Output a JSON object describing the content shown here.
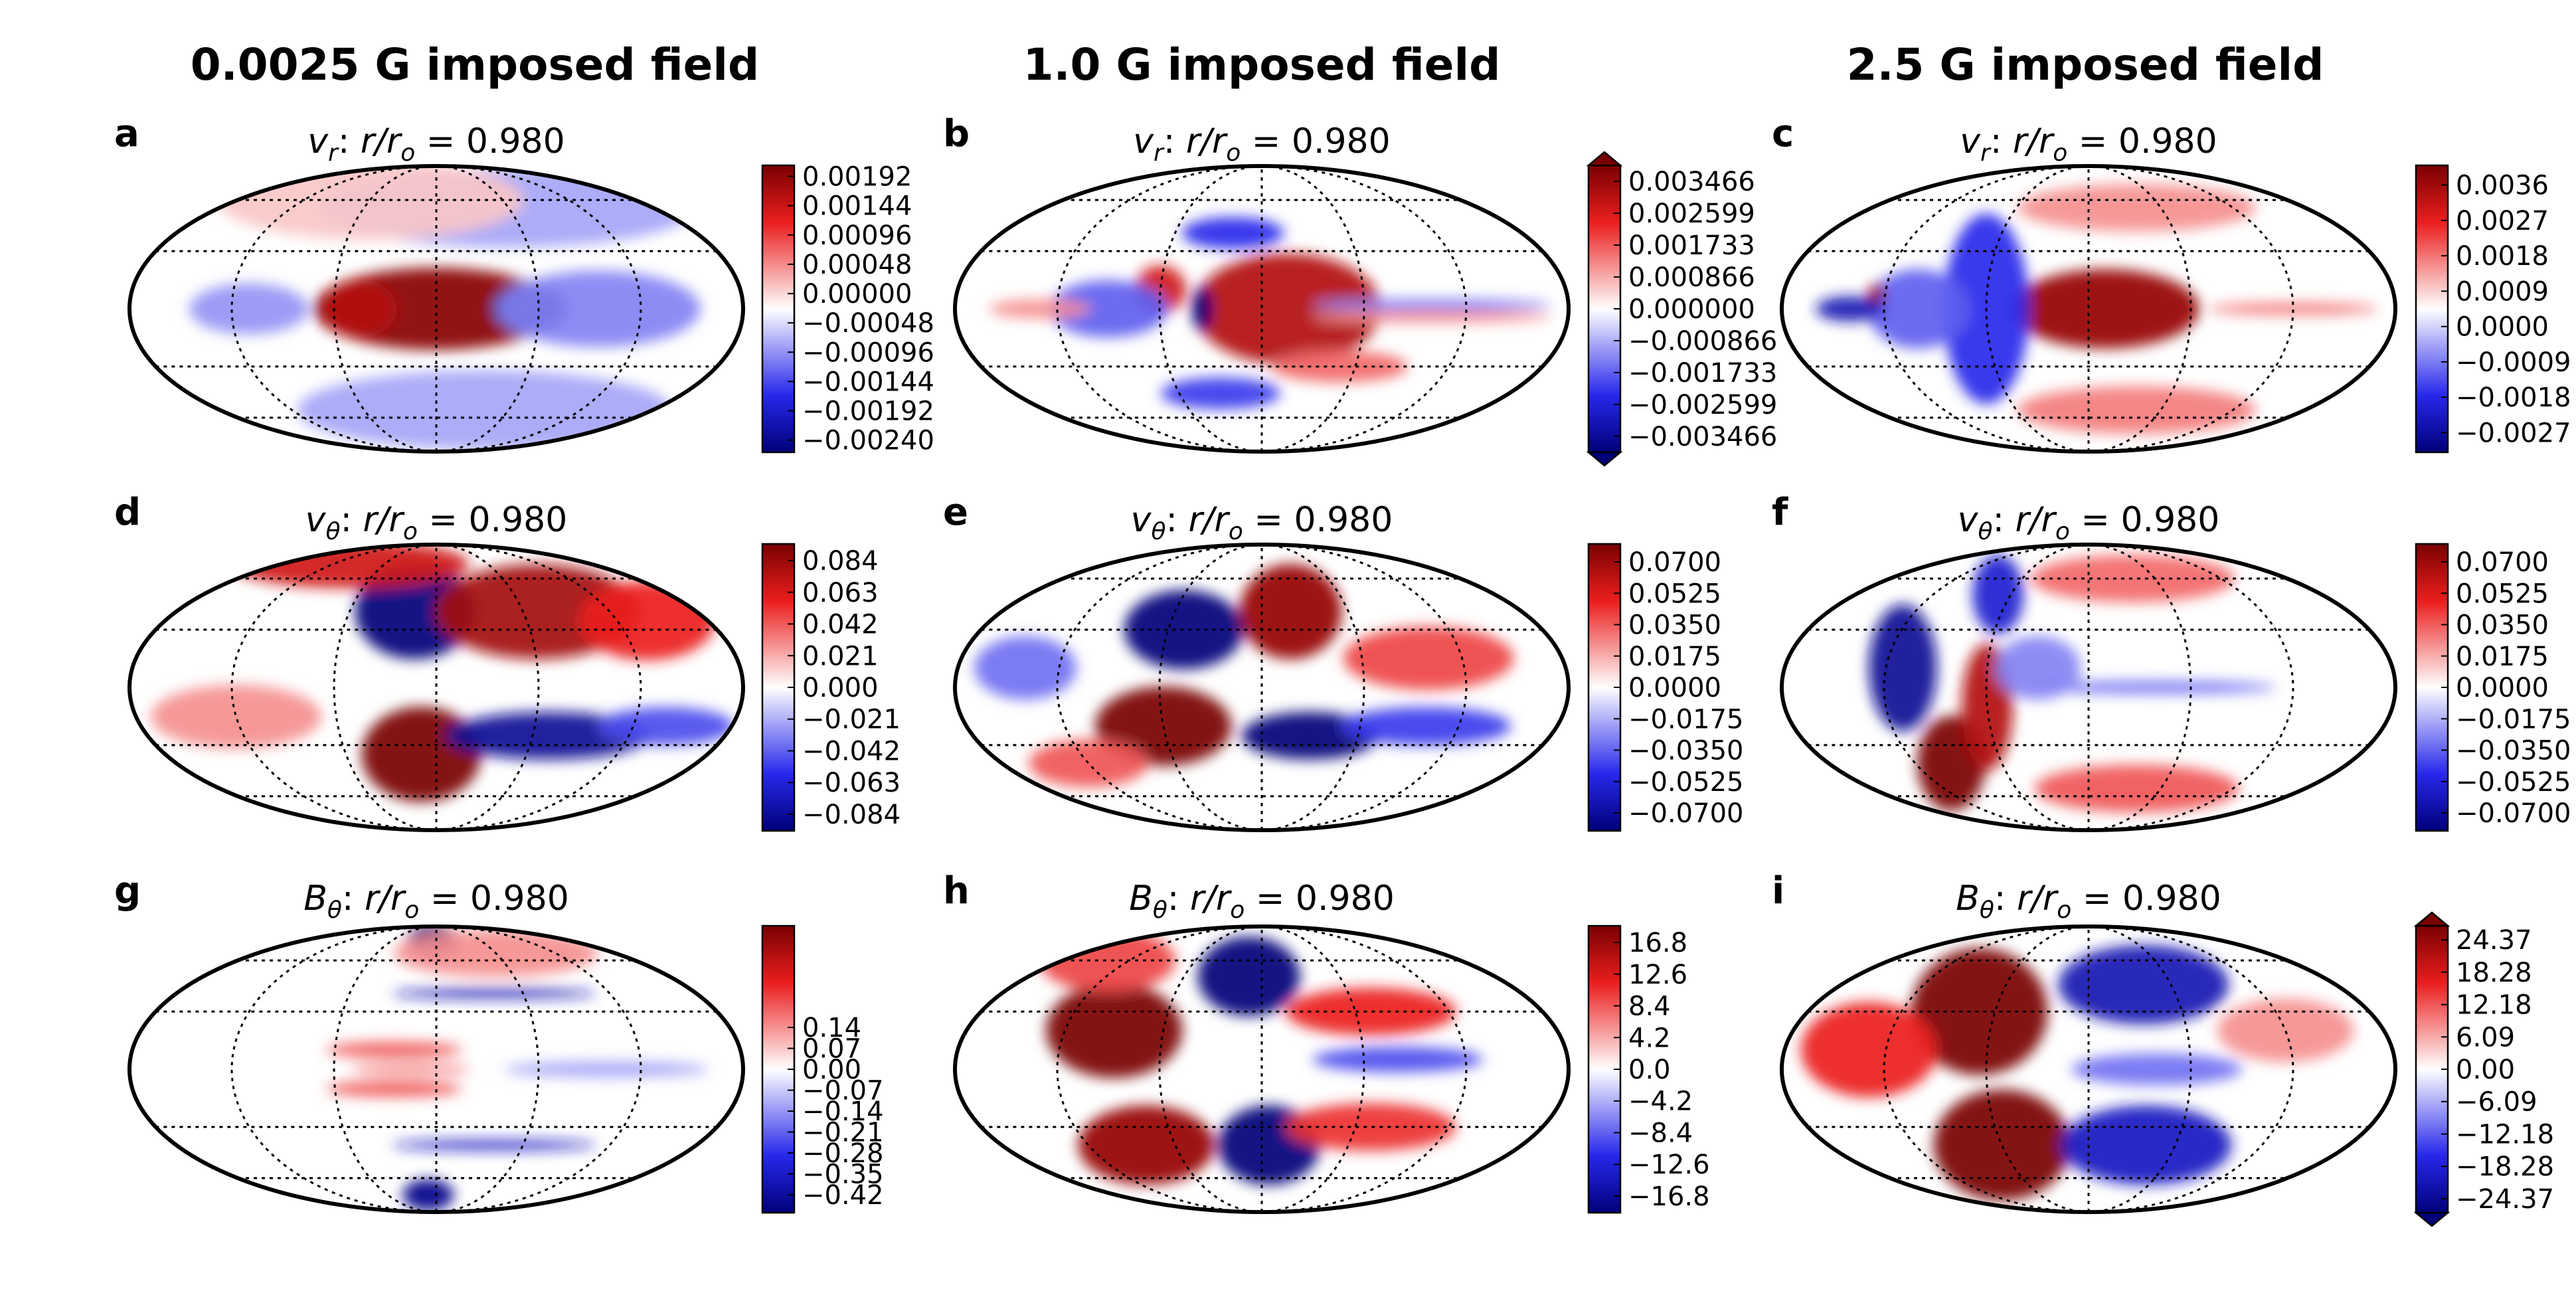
{
  "figure": {
    "column_titles": [
      "0.0025 G imposed field",
      "1.0 G imposed field",
      "2.5 G imposed field"
    ]
  },
  "colors": {
    "low": "#00007a",
    "mid": "#ffffff",
    "high": "#7a0000"
  },
  "chart_data": [
    {
      "id": "a",
      "type": "heatmap",
      "projection": "mollweide",
      "letter": "a",
      "quantity": "v_r",
      "radius_label": "r/r_o = 0.980",
      "colorbar": {
        "ticks": [
          "0.00192",
          "0.00144",
          "0.00096",
          "0.00048",
          "0.00000",
          "−0.00048",
          "−0.00096",
          "−0.00144",
          "−0.00192",
          "−0.00240"
        ],
        "vmin": -0.0026,
        "vmax": 0.0021,
        "extend": "neither"
      },
      "blobs": [
        {
          "lon": 0,
          "lat": 0,
          "w": 72,
          "h": 26,
          "v": 0.95
        },
        {
          "lon": -45,
          "lat": 0,
          "w": 22,
          "h": 18,
          "v": 0.8
        },
        {
          "lon": 55,
          "lat": 0,
          "w": 22,
          "h": 14,
          "v": -1.0
        },
        {
          "lon": 95,
          "lat": 0,
          "w": 60,
          "h": 24,
          "v": -0.35
        },
        {
          "lon": -110,
          "lat": 0,
          "w": 35,
          "h": 16,
          "v": -0.3
        },
        {
          "lon": 60,
          "lat": 55,
          "w": 110,
          "h": 25,
          "v": -0.25
        },
        {
          "lon": 40,
          "lat": -55,
          "w": 110,
          "h": 25,
          "v": -0.25
        },
        {
          "lon": -60,
          "lat": 60,
          "w": 90,
          "h": 25,
          "v": 0.15
        }
      ]
    },
    {
      "id": "b",
      "type": "heatmap",
      "projection": "mollweide",
      "letter": "b",
      "quantity": "v_r",
      "radius_label": "r/r_o = 0.980",
      "colorbar": {
        "ticks": [
          "0.003466",
          "0.002599",
          "0.001733",
          "0.000866",
          "0.000000",
          "−0.000866",
          "−0.001733",
          "−0.002599",
          "−0.003466"
        ],
        "vmin": -0.0039,
        "vmax": 0.0039,
        "extend": "both"
      },
      "blobs": [
        {
          "lon": 15,
          "lat": 0,
          "w": 55,
          "h": 35,
          "v": 0.8
        },
        {
          "lon": -60,
          "lat": 10,
          "w": 15,
          "h": 15,
          "v": 0.7
        },
        {
          "lon": -35,
          "lat": 0,
          "w": 6,
          "h": 14,
          "v": -1.0
        },
        {
          "lon": -90,
          "lat": 0,
          "w": 35,
          "h": 18,
          "v": -0.45
        },
        {
          "lon": 100,
          "lat": 2,
          "w": 70,
          "h": 4,
          "v": -0.35
        },
        {
          "lon": 100,
          "lat": -4,
          "w": 70,
          "h": 4,
          "v": 0.3
        },
        {
          "lon": -20,
          "lat": 40,
          "w": 30,
          "h": 10,
          "v": -0.6
        },
        {
          "lon": -30,
          "lat": -45,
          "w": 35,
          "h": 10,
          "v": -0.55
        },
        {
          "lon": 50,
          "lat": -30,
          "w": 40,
          "h": 10,
          "v": 0.4
        },
        {
          "lon": -130,
          "lat": 0,
          "w": 30,
          "h": 6,
          "v": 0.3
        }
      ]
    },
    {
      "id": "c",
      "type": "heatmap",
      "projection": "mollweide",
      "letter": "c",
      "quantity": "v_r",
      "radius_label": "r/r_o = 0.980",
      "colorbar": {
        "ticks": [
          "0.0036",
          "0.0027",
          "0.0018",
          "0.0009",
          "0.0000",
          "−0.0009",
          "−0.0018",
          "−0.0027"
        ],
        "vmin": -0.0032,
        "vmax": 0.0041,
        "extend": "neither"
      },
      "blobs": [
        {
          "lon": 10,
          "lat": 0,
          "w": 55,
          "h": 25,
          "v": 0.9
        },
        {
          "lon": -60,
          "lat": 0,
          "w": 25,
          "h": 60,
          "v": -0.6
        },
        {
          "lon": -100,
          "lat": 0,
          "w": 30,
          "h": 25,
          "v": -0.45
        },
        {
          "lon": -140,
          "lat": 0,
          "w": 20,
          "h": 8,
          "v": -0.8
        },
        {
          "lon": -125,
          "lat": 8,
          "w": 5,
          "h": 6,
          "v": 0.9
        },
        {
          "lon": 40,
          "lat": -55,
          "w": 70,
          "h": 15,
          "v": 0.35
        },
        {
          "lon": 40,
          "lat": 55,
          "w": 70,
          "h": 15,
          "v": 0.3
        },
        {
          "lon": 120,
          "lat": 0,
          "w": 50,
          "h": 4,
          "v": 0.35
        }
      ]
    },
    {
      "id": "d",
      "type": "heatmap",
      "projection": "mollweide",
      "letter": "d",
      "quantity": "v_theta",
      "radius_label": "r/r_o = 0.980",
      "colorbar": {
        "ticks": [
          "0.084",
          "0.063",
          "0.042",
          "0.021",
          "0.000",
          "−0.021",
          "−0.042",
          "−0.063",
          "−0.084"
        ],
        "vmin": -0.095,
        "vmax": 0.095,
        "extend": "neither"
      },
      "blobs": [
        {
          "lon": -15,
          "lat": 40,
          "w": 35,
          "h": 30,
          "v": -1.0
        },
        {
          "lon": -10,
          "lat": -35,
          "w": 35,
          "h": 30,
          "v": 1.0
        },
        {
          "lon": 70,
          "lat": 40,
          "w": 60,
          "h": 30,
          "v": 0.85
        },
        {
          "lon": 70,
          "lat": -25,
          "w": 60,
          "h": 15,
          "v": -0.9
        },
        {
          "lon": 140,
          "lat": 35,
          "w": 40,
          "h": 25,
          "v": 0.6
        },
        {
          "lon": 140,
          "lat": -20,
          "w": 40,
          "h": 12,
          "v": -0.5
        },
        {
          "lon": -100,
          "lat": 70,
          "w": 70,
          "h": 15,
          "v": 0.7
        },
        {
          "lon": -120,
          "lat": -15,
          "w": 50,
          "h": 20,
          "v": 0.3
        }
      ]
    },
    {
      "id": "e",
      "type": "heatmap",
      "projection": "mollweide",
      "letter": "e",
      "quantity": "v_theta",
      "radius_label": "r/r_o = 0.980",
      "colorbar": {
        "ticks": [
          "0.0700",
          "0.0525",
          "0.0350",
          "0.0175",
          "0.0000",
          "−0.0175",
          "−0.0350",
          "−0.0525",
          "−0.0700"
        ],
        "vmin": -0.08,
        "vmax": 0.08,
        "extend": "neither"
      },
      "blobs": [
        {
          "lon": -50,
          "lat": 30,
          "w": 35,
          "h": 25,
          "v": -1.0
        },
        {
          "lon": -60,
          "lat": -20,
          "w": 40,
          "h": 25,
          "v": 1.0
        },
        {
          "lon": 20,
          "lat": 40,
          "w": 30,
          "h": 30,
          "v": 0.9
        },
        {
          "lon": 30,
          "lat": -25,
          "w": 40,
          "h": 15,
          "v": -1.0
        },
        {
          "lon": 100,
          "lat": 15,
          "w": 50,
          "h": 20,
          "v": 0.5
        },
        {
          "lon": 100,
          "lat": -20,
          "w": 50,
          "h": 12,
          "v": -0.55
        },
        {
          "lon": -140,
          "lat": 10,
          "w": 30,
          "h": 20,
          "v": -0.4
        },
        {
          "lon": -120,
          "lat": -40,
          "w": 35,
          "h": 15,
          "v": 0.45
        }
      ]
    },
    {
      "id": "f",
      "type": "heatmap",
      "projection": "mollweide",
      "letter": "f",
      "quantity": "v_theta",
      "radius_label": "r/r_o = 0.980",
      "colorbar": {
        "ticks": [
          "0.0700",
          "0.0525",
          "0.0350",
          "0.0175",
          "0.0000",
          "−0.0175",
          "−0.0350",
          "−0.0525",
          "−0.0700"
        ],
        "vmin": -0.08,
        "vmax": 0.08,
        "extend": "neither"
      },
      "blobs": [
        {
          "lon": -110,
          "lat": 10,
          "w": 20,
          "h": 40,
          "v": -0.9
        },
        {
          "lon": -95,
          "lat": -40,
          "w": 20,
          "h": 30,
          "v": 1.0
        },
        {
          "lon": -70,
          "lat": 50,
          "w": 15,
          "h": 25,
          "v": -0.7
        },
        {
          "lon": -60,
          "lat": -10,
          "w": 15,
          "h": 40,
          "v": 0.8
        },
        {
          "lon": 40,
          "lat": 60,
          "w": 60,
          "h": 15,
          "v": 0.4
        },
        {
          "lon": 40,
          "lat": -55,
          "w": 60,
          "h": 15,
          "v": 0.45
        },
        {
          "lon": 40,
          "lat": 0,
          "w": 70,
          "h": 4,
          "v": -0.4
        },
        {
          "lon": -30,
          "lat": 10,
          "w": 25,
          "h": 20,
          "v": -0.35
        }
      ]
    },
    {
      "id": "g",
      "type": "heatmap",
      "projection": "mollweide",
      "letter": "g",
      "quantity": "B_theta",
      "radius_label": "r/r_o = 0.980",
      "colorbar": {
        "ticks": [
          "0.14",
          "0.07",
          "0.00",
          "−0.07",
          "−0.14",
          "−0.21",
          "−0.28",
          "−0.35",
          "−0.42"
        ],
        "vmin": -0.48,
        "vmax": 0.48,
        "extend": "neither"
      },
      "blobs": [
        {
          "lon": -25,
          "lat": 10,
          "w": 40,
          "h": 5,
          "v": 0.45
        },
        {
          "lon": -25,
          "lat": -10,
          "w": 40,
          "h": 5,
          "v": 0.45
        },
        {
          "lon": -15,
          "lat": 0,
          "w": 35,
          "h": 4,
          "v": 0.3
        },
        {
          "lon": -5,
          "lat": 75,
          "w": 15,
          "h": 10,
          "v": -1.0
        },
        {
          "lon": -10,
          "lat": -72,
          "w": 15,
          "h": 10,
          "v": -0.95
        },
        {
          "lon": 40,
          "lat": 40,
          "w": 60,
          "h": 3,
          "v": -0.8
        },
        {
          "lon": 40,
          "lat": -40,
          "w": 60,
          "h": 3,
          "v": -0.75
        },
        {
          "lon": 100,
          "lat": 0,
          "w": 60,
          "h": 5,
          "v": -0.25
        },
        {
          "lon": 60,
          "lat": 65,
          "w": 60,
          "h": 15,
          "v": 0.3
        }
      ]
    },
    {
      "id": "h",
      "type": "heatmap",
      "projection": "mollweide",
      "letter": "h",
      "quantity": "B_theta",
      "radius_label": "r/r_o = 0.980",
      "colorbar": {
        "ticks": [
          "16.8",
          "12.6",
          "8.4",
          "4.2",
          "0.0",
          "−4.2",
          "−8.4",
          "−12.6",
          "−16.8"
        ],
        "vmin": -19,
        "vmax": 19,
        "extend": "neither"
      },
      "blobs": [
        {
          "lon": -90,
          "lat": 20,
          "w": 40,
          "h": 30,
          "v": 1.0
        },
        {
          "lon": -80,
          "lat": -40,
          "w": 40,
          "h": 25,
          "v": 0.9
        },
        {
          "lon": -10,
          "lat": 50,
          "w": 30,
          "h": 25,
          "v": -1.0
        },
        {
          "lon": 5,
          "lat": -40,
          "w": 30,
          "h": 25,
          "v": -1.0
        },
        {
          "lon": 70,
          "lat": 30,
          "w": 50,
          "h": 15,
          "v": 0.6
        },
        {
          "lon": 70,
          "lat": -30,
          "w": 50,
          "h": 15,
          "v": 0.55
        },
        {
          "lon": 80,
          "lat": 5,
          "w": 50,
          "h": 8,
          "v": -0.5
        },
        {
          "lon": -140,
          "lat": 60,
          "w": 40,
          "h": 20,
          "v": 0.5
        }
      ]
    },
    {
      "id": "i",
      "type": "heatmap",
      "projection": "mollweide",
      "letter": "i",
      "quantity": "B_theta",
      "radius_label": "r/r_o = 0.980",
      "colorbar": {
        "ticks": [
          "24.37",
          "18.28",
          "12.18",
          "6.09",
          "0.00",
          "−6.09",
          "−12.18",
          "−18.28",
          "−24.37"
        ],
        "vmin": -27,
        "vmax": 27,
        "extend": "both"
      },
      "blobs": [
        {
          "lon": -70,
          "lat": 30,
          "w": 40,
          "h": 40,
          "v": 1.0
        },
        {
          "lon": -60,
          "lat": -40,
          "w": 40,
          "h": 35,
          "v": 1.0
        },
        {
          "lon": -130,
          "lat": 10,
          "w": 40,
          "h": 30,
          "v": 0.6
        },
        {
          "lon": 40,
          "lat": 45,
          "w": 50,
          "h": 25,
          "v": -0.8
        },
        {
          "lon": 40,
          "lat": -40,
          "w": 50,
          "h": 25,
          "v": -0.75
        },
        {
          "lon": 40,
          "lat": 0,
          "w": 50,
          "h": 10,
          "v": -0.4
        },
        {
          "lon": 120,
          "lat": 20,
          "w": 40,
          "h": 20,
          "v": 0.3
        }
      ]
    }
  ]
}
